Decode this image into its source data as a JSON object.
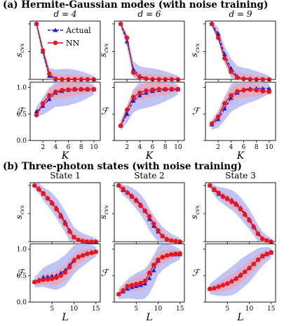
{
  "sections": {
    "a": {
      "title": "(a) Hermite-Gaussian modes (with noise training)"
    },
    "b": {
      "title": "(b) Three-photon states (with noise training)"
    }
  },
  "legend": {
    "actual": "Actual",
    "nn": "NN"
  },
  "colors": {
    "actual": "#1f1fd0",
    "nn": "#e8141e",
    "actual_band": "#aab0f2",
    "nn_band": "#f3a0a6",
    "nn_line": "#cc1020"
  },
  "chart_data": [
    {
      "type": "line",
      "panel": "a1-top",
      "title": "d = 4",
      "xlabel": "",
      "ylabel": "s_cvx",
      "xlim": [
        0,
        11
      ],
      "ylim": [
        0,
        1.05
      ],
      "x": [
        1,
        2,
        3,
        4,
        5,
        6,
        7,
        8,
        9,
        10
      ],
      "series": [
        {
          "name": "Actual",
          "values": [
            1.0,
            0.5,
            0.06,
            0.0,
            0.0,
            0.0,
            0.0,
            0.0,
            0.0,
            0.0
          ]
        },
        {
          "name": "NN",
          "values": [
            1.0,
            0.52,
            0.1,
            0.01,
            0.0,
            0.0,
            0.0,
            0.0,
            0.0,
            0.0
          ]
        }
      ],
      "yticks": [],
      "xticks": []
    },
    {
      "type": "line",
      "panel": "a1-bottom",
      "title": "",
      "xlabel": "K",
      "ylabel": "F",
      "xlim": [
        0,
        11
      ],
      "ylim": [
        0,
        1.1
      ],
      "x": [
        1,
        2,
        3,
        4,
        5,
        6,
        7,
        8,
        9,
        10
      ],
      "series": [
        {
          "name": "Actual",
          "values": [
            0.55,
            0.65,
            0.78,
            0.9,
            0.93,
            0.95,
            0.96,
            0.96,
            0.96,
            0.96
          ]
        },
        {
          "name": "NN",
          "values": [
            0.48,
            0.7,
            0.85,
            0.92,
            0.95,
            0.96,
            0.97,
            0.97,
            0.97,
            0.97
          ]
        }
      ],
      "yticks": [
        "0.0",
        "0.5",
        "1.0"
      ],
      "xticks": [
        "2",
        "4",
        "6",
        "8",
        "10"
      ]
    },
    {
      "type": "line",
      "panel": "a2-top",
      "title": "d = 6",
      "xlabel": "",
      "ylabel": "s_cvx",
      "xlim": [
        0,
        11
      ],
      "ylim": [
        0,
        1.05
      ],
      "x": [
        1,
        2,
        3,
        4,
        5,
        6,
        7,
        8,
        9,
        10
      ],
      "series": [
        {
          "name": "Actual",
          "values": [
            1.0,
            0.68,
            0.18,
            0.06,
            0.02,
            0.01,
            0.0,
            0.0,
            0.0,
            0.0
          ]
        },
        {
          "name": "NN",
          "values": [
            1.0,
            0.75,
            0.12,
            0.04,
            0.01,
            0.0,
            0.0,
            0.0,
            0.0,
            0.0
          ]
        }
      ],
      "yticks": [],
      "xticks": []
    },
    {
      "type": "line",
      "panel": "a2-bottom",
      "title": "",
      "xlabel": "K",
      "ylabel": "F",
      "xlim": [
        0,
        11
      ],
      "ylim": [
        0,
        1.1
      ],
      "x": [
        1,
        2,
        3,
        4,
        5,
        6,
        7,
        8,
        9,
        10
      ],
      "series": [
        {
          "name": "Actual",
          "values": [
            0.28,
            0.5,
            0.75,
            0.85,
            0.9,
            0.93,
            0.95,
            0.96,
            0.96,
            0.96
          ]
        },
        {
          "name": "NN",
          "values": [
            0.28,
            0.58,
            0.82,
            0.9,
            0.94,
            0.96,
            0.97,
            0.97,
            0.97,
            0.97
          ]
        }
      ],
      "yticks": [],
      "xticks": [
        "2",
        "4",
        "6",
        "8",
        "10"
      ]
    },
    {
      "type": "line",
      "panel": "a3-top",
      "title": "d = 9",
      "xlabel": "",
      "ylabel": "s_cvx",
      "xlim": [
        0,
        11
      ],
      "ylim": [
        0,
        1.05
      ],
      "x": [
        1,
        2,
        3,
        4,
        5,
        6,
        7,
        8,
        9,
        10
      ],
      "series": [
        {
          "name": "Actual",
          "values": [
            1.0,
            0.82,
            0.45,
            0.2,
            0.05,
            0.02,
            0.01,
            0.0,
            0.0,
            0.0
          ]
        },
        {
          "name": "NN",
          "values": [
            1.0,
            0.75,
            0.38,
            0.14,
            0.03,
            0.01,
            0.0,
            0.0,
            0.0,
            0.0
          ]
        }
      ],
      "yticks": [],
      "xticks": []
    },
    {
      "type": "line",
      "panel": "a3-bottom",
      "title": "",
      "xlabel": "K",
      "ylabel": "F",
      "xlim": [
        0,
        11
      ],
      "ylim": [
        0,
        1.1
      ],
      "x": [
        1,
        2,
        3,
        4,
        5,
        6,
        7,
        8,
        9,
        10
      ],
      "series": [
        {
          "name": "Actual",
          "values": [
            0.3,
            0.4,
            0.6,
            0.8,
            0.9,
            0.96,
            0.98,
            0.98,
            0.98,
            0.98
          ]
        },
        {
          "name": "NN",
          "values": [
            0.32,
            0.45,
            0.7,
            0.85,
            0.93,
            0.95,
            0.96,
            0.95,
            0.93,
            0.92
          ]
        }
      ],
      "yticks": [],
      "xticks": [
        "2",
        "4",
        "6",
        "8",
        "10"
      ]
    },
    {
      "type": "line",
      "panel": "b1-top",
      "title": "State 1",
      "xlabel": "",
      "ylabel": "s_cvx",
      "xlim": [
        0,
        16
      ],
      "ylim": [
        0,
        1.05
      ],
      "x": [
        1,
        2,
        3,
        4,
        5,
        6,
        7,
        8,
        9,
        10,
        11,
        12,
        13,
        14,
        15
      ],
      "series": [
        {
          "name": "Actual",
          "values": [
            1.0,
            0.95,
            0.85,
            0.78,
            0.7,
            0.6,
            0.48,
            0.35,
            0.2,
            0.08,
            0.03,
            0.01,
            0.0,
            0.0,
            0.0
          ]
        },
        {
          "name": "NN",
          "values": [
            1.0,
            0.93,
            0.86,
            0.77,
            0.68,
            0.58,
            0.45,
            0.32,
            0.18,
            0.08,
            0.03,
            0.01,
            0.0,
            0.0,
            0.0
          ]
        }
      ],
      "yticks": [],
      "xticks": []
    },
    {
      "type": "line",
      "panel": "b1-bottom",
      "title": "",
      "xlabel": "L",
      "ylabel": "F",
      "xlim": [
        0,
        16
      ],
      "ylim": [
        0,
        1.1
      ],
      "x": [
        1,
        2,
        3,
        4,
        5,
        6,
        7,
        8,
        9,
        10,
        11,
        12,
        13,
        14,
        15
      ],
      "series": [
        {
          "name": "Actual",
          "values": [
            0.38,
            0.42,
            0.47,
            0.48,
            0.49,
            0.5,
            0.55,
            0.6,
            0.7,
            0.8,
            0.86,
            0.89,
            0.92,
            0.94,
            0.95
          ]
        },
        {
          "name": "NN",
          "values": [
            0.38,
            0.4,
            0.42,
            0.43,
            0.44,
            0.46,
            0.5,
            0.56,
            0.66,
            0.78,
            0.85,
            0.88,
            0.91,
            0.93,
            0.95
          ]
        }
      ],
      "yticks": [
        "0.0",
        "0.5",
        "1.0"
      ],
      "xticks": [
        "5",
        "10",
        "15"
      ]
    },
    {
      "type": "line",
      "panel": "b2-top",
      "title": "State 2",
      "xlabel": "",
      "ylabel": "s_cvx",
      "xlim": [
        0,
        16
      ],
      "ylim": [
        0,
        1.05
      ],
      "x": [
        1,
        2,
        3,
        4,
        5,
        6,
        7,
        8,
        9,
        10,
        11,
        12,
        13,
        14,
        15
      ],
      "series": [
        {
          "name": "Actual",
          "values": [
            1.0,
            0.92,
            0.88,
            0.82,
            0.75,
            0.66,
            0.55,
            0.4,
            0.28,
            0.18,
            0.1,
            0.05,
            0.02,
            0.01,
            0.0
          ]
        },
        {
          "name": "NN",
          "values": [
            1.0,
            0.94,
            0.87,
            0.8,
            0.73,
            0.64,
            0.55,
            0.45,
            0.32,
            0.2,
            0.1,
            0.04,
            0.02,
            0.01,
            0.0
          ]
        }
      ],
      "yticks": [],
      "xticks": []
    },
    {
      "type": "line",
      "panel": "b2-bottom",
      "title": "",
      "xlabel": "L",
      "ylabel": "F",
      "xlim": [
        0,
        16
      ],
      "ylim": [
        0,
        1.1
      ],
      "x": [
        1,
        2,
        3,
        4,
        5,
        6,
        7,
        8,
        9,
        10,
        11,
        12,
        13,
        14,
        15
      ],
      "series": [
        {
          "name": "Actual",
          "values": [
            0.15,
            0.2,
            0.25,
            0.28,
            0.3,
            0.32,
            0.35,
            0.45,
            0.6,
            0.78,
            0.85,
            0.88,
            0.9,
            0.9,
            0.9
          ]
        },
        {
          "name": "NN",
          "values": [
            0.15,
            0.22,
            0.3,
            0.32,
            0.34,
            0.36,
            0.4,
            0.55,
            0.7,
            0.8,
            0.85,
            0.88,
            0.9,
            0.91,
            0.92
          ]
        }
      ],
      "yticks": [],
      "xticks": [
        "5",
        "10",
        "15"
      ]
    },
    {
      "type": "line",
      "panel": "b3-top",
      "title": "State 3",
      "xlabel": "",
      "ylabel": "s_cvx",
      "xlim": [
        0,
        16
      ],
      "ylim": [
        0,
        1.05
      ],
      "x": [
        1,
        2,
        3,
        4,
        5,
        6,
        7,
        8,
        9,
        10,
        11,
        12,
        13,
        14,
        15
      ],
      "series": [
        {
          "name": "Actual",
          "values": [
            1.0,
            0.92,
            0.85,
            0.82,
            0.78,
            0.74,
            0.68,
            0.6,
            0.5,
            0.4,
            0.28,
            0.15,
            0.06,
            0.02,
            0.0
          ]
        },
        {
          "name": "NN",
          "values": [
            1.0,
            0.93,
            0.87,
            0.8,
            0.76,
            0.71,
            0.66,
            0.58,
            0.48,
            0.38,
            0.26,
            0.14,
            0.05,
            0.02,
            0.0
          ]
        }
      ],
      "yticks": [],
      "xticks": []
    },
    {
      "type": "line",
      "panel": "b3-bottom",
      "title": "",
      "xlabel": "L",
      "ylabel": "F",
      "xlim": [
        0,
        16
      ],
      "ylim": [
        0,
        1.1
      ],
      "x": [
        1,
        2,
        3,
        4,
        5,
        6,
        7,
        8,
        9,
        10,
        11,
        12,
        13,
        14,
        15
      ],
      "series": [
        {
          "name": "Actual",
          "values": [
            0.25,
            0.27,
            0.3,
            0.33,
            0.36,
            0.4,
            0.45,
            0.52,
            0.58,
            0.65,
            0.72,
            0.8,
            0.86,
            0.9,
            0.93
          ]
        },
        {
          "name": "NN",
          "values": [
            0.25,
            0.26,
            0.29,
            0.32,
            0.35,
            0.39,
            0.44,
            0.5,
            0.57,
            0.64,
            0.72,
            0.8,
            0.87,
            0.91,
            0.94
          ]
        }
      ],
      "yticks": [],
      "xticks": [
        "5",
        "10",
        "15"
      ]
    }
  ]
}
